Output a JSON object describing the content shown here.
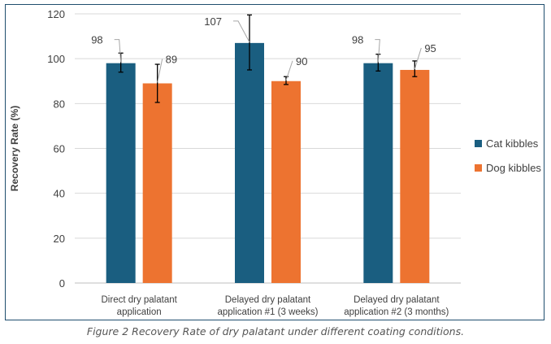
{
  "caption": "Figure 2 Recovery Rate of dry palatant under different coating conditions.",
  "chart_data": {
    "type": "bar",
    "ylabel": "Recovery Rate (%)",
    "xlabel": "",
    "ylim": [
      0,
      120
    ],
    "yticks": [
      0,
      20,
      40,
      60,
      80,
      100,
      120
    ],
    "grid": true,
    "legend_position": "right",
    "categories": [
      [
        "Direct dry palatant",
        "application"
      ],
      [
        "Delayed dry palatant",
        "application #1 (3 weeks)"
      ],
      [
        "Delayed dry palatant",
        "application #2 (3 months)"
      ]
    ],
    "series": [
      {
        "name": "Cat kibbles",
        "color": "#1a5e80",
        "values": [
          98,
          107,
          98
        ],
        "labels": [
          "98",
          "107",
          "98"
        ],
        "error": [
          [
            94,
            102.5
          ],
          [
            95,
            119.5
          ],
          [
            94.5,
            102
          ]
        ]
      },
      {
        "name": "Dog kibbles",
        "color": "#ed7330",
        "values": [
          89,
          90,
          95
        ],
        "labels": [
          "89",
          "90",
          "95"
        ],
        "error": [
          [
            80.5,
            97.5
          ],
          [
            88.5,
            92
          ],
          [
            92,
            99
          ]
        ]
      }
    ]
  }
}
